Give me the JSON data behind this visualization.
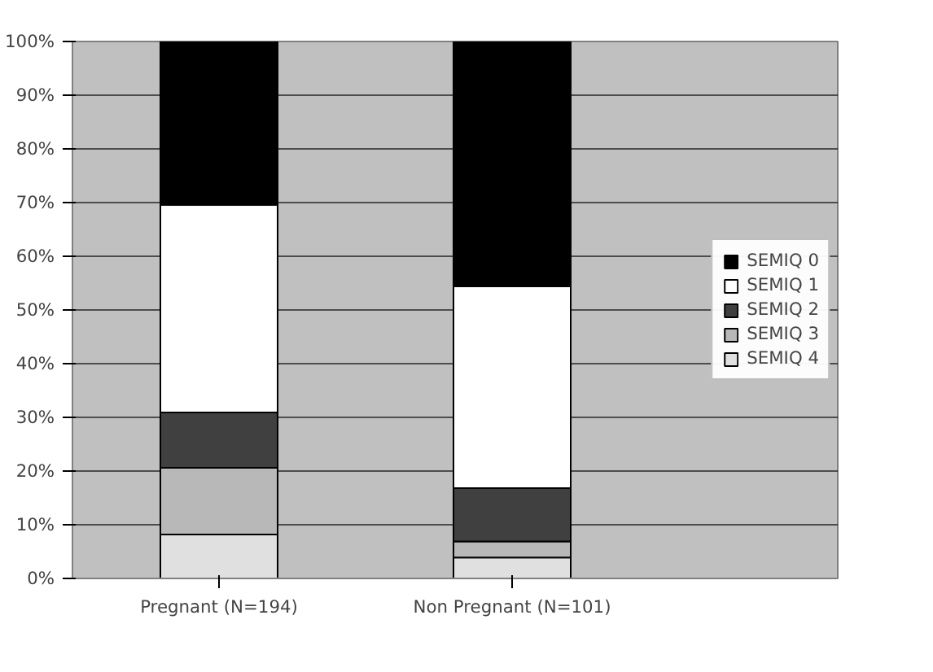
{
  "chart_data": {
    "type": "bar",
    "stacked": true,
    "categories": [
      "Pregnant (N=194)",
      "Non Pregnant (N=101)"
    ],
    "series": [
      {
        "name": "SEMIQ 4",
        "color": "#e0e0e0",
        "values": [
          8.2,
          3.9
        ]
      },
      {
        "name": "SEMIQ 3",
        "color": "#b8b8b8",
        "values": [
          12.4,
          3.0
        ]
      },
      {
        "name": "SEMIQ 2",
        "color": "#404040",
        "values": [
          10.3,
          9.9
        ]
      },
      {
        "name": "SEMIQ 1",
        "color": "#ffffff",
        "values": [
          38.7,
          37.6
        ]
      },
      {
        "name": "SEMIQ 0",
        "color": "#000000",
        "values": [
          30.4,
          45.6
        ]
      }
    ],
    "ylim": [
      0,
      100
    ],
    "yticks": [
      {
        "value": 0,
        "label": "0%"
      },
      {
        "value": 10,
        "label": "10%"
      },
      {
        "value": 20,
        "label": "20%"
      },
      {
        "value": 30,
        "label": "30%"
      },
      {
        "value": 40,
        "label": "40%"
      },
      {
        "value": 50,
        "label": "50%"
      },
      {
        "value": 60,
        "label": "60%"
      },
      {
        "value": 70,
        "label": "70%"
      },
      {
        "value": 80,
        "label": "80%"
      },
      {
        "value": 90,
        "label": "90%"
      },
      {
        "value": 100,
        "label": "100%"
      }
    ],
    "grid": "y",
    "legend": "right"
  }
}
